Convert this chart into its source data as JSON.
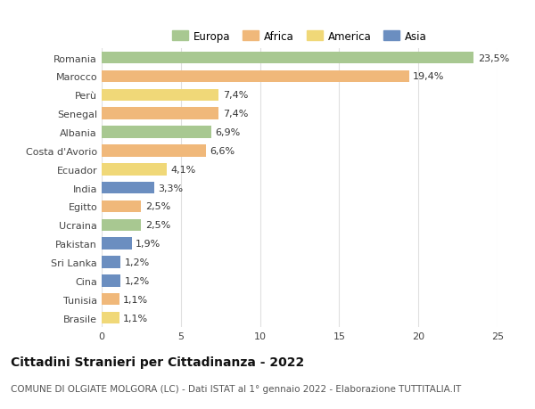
{
  "countries": [
    "Romania",
    "Marocco",
    "Perù",
    "Senegal",
    "Albania",
    "Costa d'Avorio",
    "Ecuador",
    "India",
    "Egitto",
    "Ucraina",
    "Pakistan",
    "Sri Lanka",
    "Cina",
    "Tunisia",
    "Brasile"
  ],
  "values": [
    23.5,
    19.4,
    7.4,
    7.4,
    6.9,
    6.6,
    4.1,
    3.3,
    2.5,
    2.5,
    1.9,
    1.2,
    1.2,
    1.1,
    1.1
  ],
  "labels": [
    "23,5%",
    "19,4%",
    "7,4%",
    "7,4%",
    "6,9%",
    "6,6%",
    "4,1%",
    "3,3%",
    "2,5%",
    "2,5%",
    "1,9%",
    "1,2%",
    "1,2%",
    "1,1%",
    "1,1%"
  ],
  "continents": [
    "Europa",
    "Africa",
    "America",
    "Africa",
    "Europa",
    "Africa",
    "America",
    "Asia",
    "Africa",
    "Europa",
    "Asia",
    "Asia",
    "Asia",
    "Africa",
    "America"
  ],
  "colors": {
    "Europa": "#a8c891",
    "Africa": "#f0b87a",
    "America": "#f0d878",
    "Asia": "#6b8ec0"
  },
  "legend_order": [
    "Europa",
    "Africa",
    "America",
    "Asia"
  ],
  "title": "Cittadini Stranieri per Cittadinanza - 2022",
  "subtitle": "COMUNE DI OLGIATE MOLGORA (LC) - Dati ISTAT al 1° gennaio 2022 - Elaborazione TUTTITALIA.IT",
  "xlim": [
    0,
    25
  ],
  "xticks": [
    0,
    5,
    10,
    15,
    20,
    25
  ],
  "background_color": "#ffffff",
  "grid_color": "#e0e0e0",
  "bar_height": 0.65,
  "title_fontsize": 10,
  "subtitle_fontsize": 7.5,
  "label_fontsize": 8,
  "tick_fontsize": 8,
  "legend_fontsize": 8.5
}
